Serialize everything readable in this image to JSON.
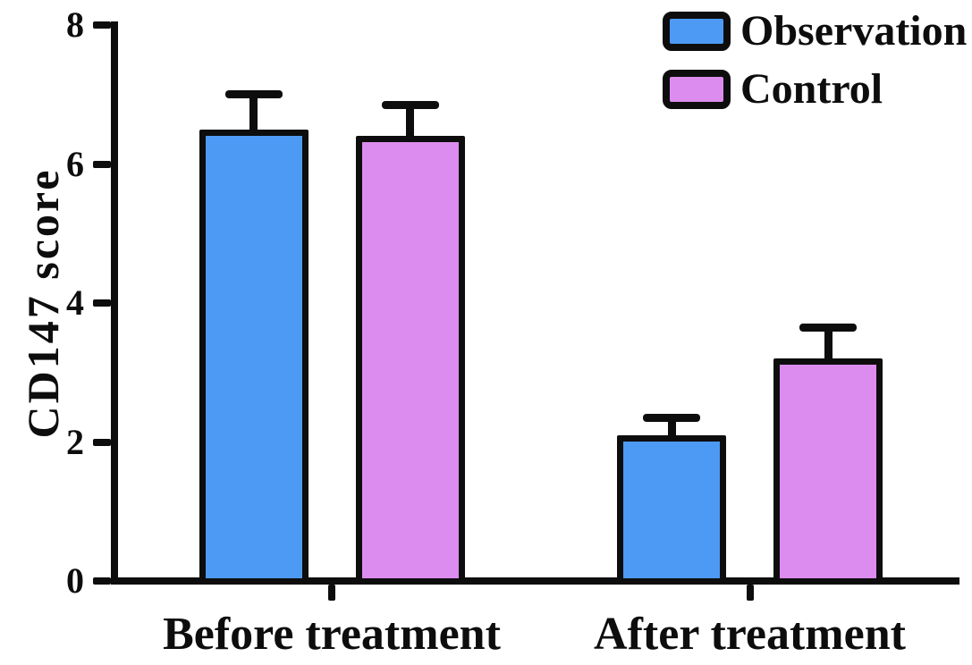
{
  "figure": {
    "background": "#ffffff",
    "ink_color": "#0d0d0d"
  },
  "chart_data": {
    "type": "bar",
    "title": "",
    "ylabel": "CD147 score",
    "xlabel": "",
    "categories": [
      "Before treatment",
      "After treatment"
    ],
    "series": [
      {
        "name": "Observation",
        "color": "#4d9af5",
        "values": [
          6.5,
          2.1
        ],
        "error_upper": [
          0.5,
          0.25
        ]
      },
      {
        "name": "Control",
        "color": "#dc8cee",
        "values": [
          6.4,
          3.2
        ],
        "error_upper": [
          0.45,
          0.45
        ]
      }
    ],
    "ylim": [
      0,
      8
    ],
    "yticks": [
      0,
      2,
      4,
      6,
      8
    ],
    "grid": false,
    "error_bars": "upper-only",
    "legend_position": "top-right"
  }
}
